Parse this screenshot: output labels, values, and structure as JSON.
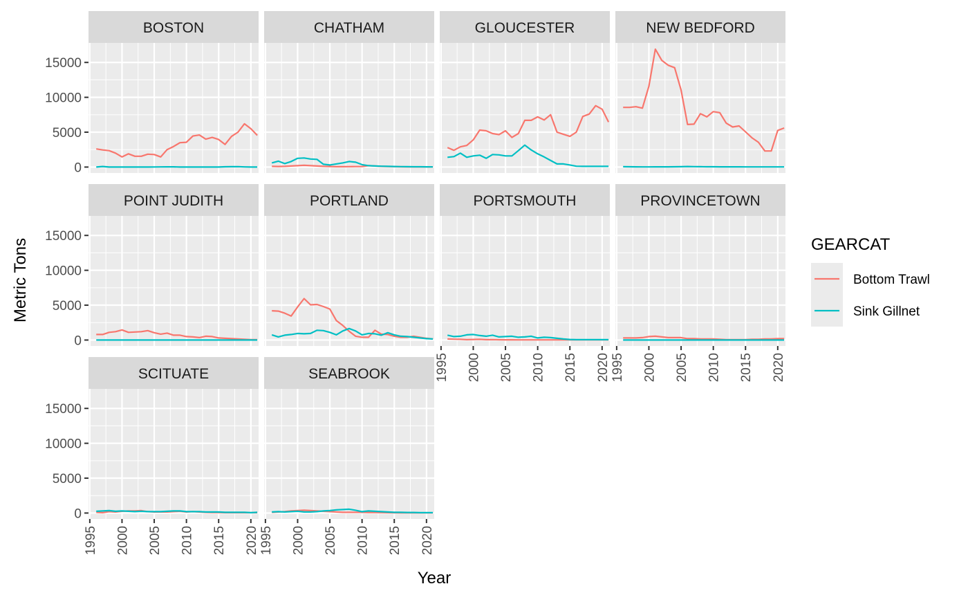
{
  "chart_data": {
    "type": "line",
    "facet_layout": "4 columns, 3 rows",
    "grid": true,
    "background": "#EBEBEB",
    "strip_fill": "#D9D9D9",
    "xlabel": "Year",
    "ylabel": "Metric Tons",
    "xlim": [
      1994.8,
      2021.2
    ],
    "ylim": [
      -850,
      17800
    ],
    "x_ticks": [
      "1995",
      "2000",
      "2005",
      "2010",
      "2015",
      "2020"
    ],
    "y_ticks": [
      "0",
      "5000",
      "10000",
      "15000"
    ],
    "legend": {
      "title": "GEARCAT",
      "placement": "right",
      "entries": [
        "Bottom Trawl",
        "Sink Gillnet"
      ]
    },
    "series_colors": {
      "Bottom Trawl": "#F8766D",
      "Sink Gillnet": "#00BFC4"
    },
    "x": [
      1996,
      1997,
      1998,
      1999,
      2000,
      2001,
      2002,
      2003,
      2004,
      2005,
      2006,
      2007,
      2008,
      2009,
      2010,
      2011,
      2012,
      2013,
      2014,
      2015,
      2016,
      2017,
      2018,
      2019,
      2020,
      2021
    ],
    "facets": [
      {
        "name": "BOSTON",
        "series": [
          {
            "name": "Bottom Trawl",
            "values": [
              2600,
              2450,
              2350,
              2000,
              1450,
              1900,
              1550,
              1550,
              1850,
              1800,
              1450,
              2500,
              2950,
              3500,
              3550,
              4450,
              4600,
              4000,
              4250,
              3950,
              3250,
              4400,
              5000,
              6200,
              5500,
              4550
            ]
          },
          {
            "name": "Sink Gillnet",
            "values": [
              0,
              80,
              0,
              0,
              0,
              0,
              0,
              0,
              0,
              10,
              20,
              30,
              30,
              0,
              0,
              0,
              0,
              0,
              0,
              0,
              40,
              50,
              60,
              20,
              0,
              0
            ]
          }
        ]
      },
      {
        "name": "CHATHAM",
        "series": [
          {
            "name": "Bottom Trawl",
            "values": [
              100,
              80,
              100,
              150,
              200,
              250,
              200,
              150,
              100,
              80,
              50,
              50,
              60,
              70,
              80,
              200,
              150,
              100,
              80,
              60,
              40,
              30,
              20,
              20,
              20,
              20
            ]
          },
          {
            "name": "Sink Gillnet",
            "values": [
              600,
              850,
              500,
              800,
              1250,
              1300,
              1150,
              1100,
              400,
              300,
              450,
              600,
              800,
              700,
              350,
              200,
              150,
              120,
              100,
              80,
              60,
              50,
              40,
              40,
              30,
              20
            ]
          }
        ]
      },
      {
        "name": "GLOUCESTER",
        "series": [
          {
            "name": "Bottom Trawl",
            "values": [
              2800,
              2400,
              2900,
              3100,
              3900,
              5300,
              5200,
              4800,
              4650,
              5200,
              4250,
              4800,
              6700,
              6700,
              7200,
              6750,
              7500,
              5000,
              4700,
              4400,
              5000,
              7250,
              7600,
              8800,
              8300,
              6450
            ]
          },
          {
            "name": "Sink Gillnet",
            "values": [
              1400,
              1500,
              2000,
              1400,
              1600,
              1700,
              1250,
              1800,
              1750,
              1600,
              1600,
              2350,
              3150,
              2450,
              1900,
              1450,
              950,
              450,
              450,
              300,
              120,
              100,
              100,
              100,
              100,
              100
            ]
          }
        ]
      },
      {
        "name": "NEW BEDFORD",
        "series": [
          {
            "name": "Bottom Trawl",
            "values": [
              8550,
              8550,
              8650,
              8450,
              11600,
              16900,
              15300,
              14600,
              14250,
              11050,
              6100,
              6150,
              7650,
              7200,
              7950,
              7800,
              6300,
              5750,
              5900,
              5050,
              4200,
              3550,
              2300,
              2300,
              5250,
              5600
            ]
          },
          {
            "name": "Sink Gillnet",
            "values": [
              50,
              40,
              30,
              20,
              20,
              30,
              30,
              30,
              40,
              50,
              80,
              60,
              50,
              40,
              40,
              30,
              30,
              30,
              30,
              20,
              20,
              20,
              20,
              20,
              20,
              20
            ]
          }
        ]
      },
      {
        "name": "POINT JUDITH",
        "series": [
          {
            "name": "Bottom Trawl",
            "values": [
              800,
              800,
              1100,
              1200,
              1450,
              1100,
              1150,
              1200,
              1350,
              1050,
              850,
              1000,
              700,
              700,
              500,
              450,
              350,
              550,
              500,
              300,
              250,
              200,
              150,
              100,
              50,
              50
            ]
          },
          {
            "name": "Sink Gillnet",
            "values": [
              0,
              0,
              0,
              0,
              0,
              0,
              0,
              0,
              0,
              0,
              0,
              0,
              0,
              0,
              0,
              0,
              0,
              0,
              0,
              0,
              0,
              0,
              0,
              0,
              0,
              0
            ]
          }
        ]
      },
      {
        "name": "PORTLAND",
        "series": [
          {
            "name": "Bottom Trawl",
            "values": [
              4200,
              4150,
              3850,
              3450,
              4750,
              5950,
              5050,
              5100,
              4800,
              4450,
              2800,
              2100,
              1250,
              550,
              400,
              400,
              1400,
              850,
              800,
              550,
              400,
              400,
              550,
              400,
              250,
              150
            ]
          },
          {
            "name": "Sink Gillnet",
            "values": [
              750,
              450,
              700,
              800,
              950,
              900,
              950,
              1400,
              1350,
              1100,
              750,
              1300,
              1650,
              1300,
              750,
              950,
              900,
              700,
              1050,
              750,
              550,
              500,
              400,
              300,
              200,
              150
            ]
          }
        ]
      },
      {
        "name": "PORTSMOUTH",
        "series": [
          {
            "name": "Bottom Trawl",
            "values": [
              150,
              120,
              100,
              50,
              80,
              100,
              50,
              60,
              40,
              30,
              30,
              20,
              20,
              20,
              20,
              20,
              20,
              20,
              20,
              20,
              20,
              20,
              20,
              20,
              20,
              20
            ]
          },
          {
            "name": "Sink Gillnet",
            "values": [
              700,
              500,
              550,
              750,
              800,
              650,
              550,
              700,
              450,
              500,
              550,
              400,
              450,
              550,
              300,
              400,
              350,
              250,
              150,
              80,
              50,
              50,
              50,
              50,
              50,
              50
            ]
          }
        ]
      },
      {
        "name": "PROVINCETOWN",
        "series": [
          {
            "name": "Bottom Trawl",
            "values": [
              300,
              300,
              300,
              350,
              500,
              550,
              450,
              350,
              350,
              350,
              200,
              200,
              150,
              150,
              150,
              100,
              50,
              50,
              50,
              50,
              100,
              100,
              150,
              150,
              200,
              200
            ]
          },
          {
            "name": "Sink Gillnet",
            "values": [
              0,
              0,
              0,
              0,
              0,
              0,
              0,
              0,
              0,
              0,
              0,
              0,
              0,
              0,
              0,
              0,
              0,
              0,
              0,
              0,
              0,
              0,
              0,
              0,
              0,
              0
            ]
          }
        ]
      },
      {
        "name": "SCITUATE",
        "series": [
          {
            "name": "Bottom Trawl",
            "values": [
              100,
              50,
              200,
              150,
              250,
              300,
              300,
              350,
              200,
              150,
              150,
              150,
              200,
              250,
              150,
              200,
              150,
              100,
              80,
              80,
              50,
              50,
              50,
              50,
              50,
              50
            ]
          },
          {
            "name": "Sink Gillnet",
            "values": [
              250,
              300,
              350,
              250,
              300,
              250,
              200,
              250,
              200,
              200,
              200,
              250,
              300,
              300,
              200,
              200,
              200,
              150,
              150,
              150,
              100,
              100,
              100,
              100,
              50,
              100
            ]
          }
        ]
      },
      {
        "name": "SEABROOK",
        "series": [
          {
            "name": "Bottom Trawl",
            "values": [
              100,
              150,
              200,
              300,
              350,
              400,
              350,
              300,
              250,
              200,
              150,
              100,
              100,
              100,
              100,
              80,
              80,
              60,
              50,
              40,
              30,
              20,
              20,
              20,
              20,
              20
            ]
          },
          {
            "name": "Sink Gillnet",
            "values": [
              150,
              200,
              150,
              200,
              250,
              150,
              150,
              200,
              300,
              350,
              450,
              500,
              550,
              400,
              200,
              300,
              250,
              200,
              150,
              100,
              100,
              80,
              80,
              50,
              50,
              50
            ]
          }
        ]
      }
    ]
  }
}
